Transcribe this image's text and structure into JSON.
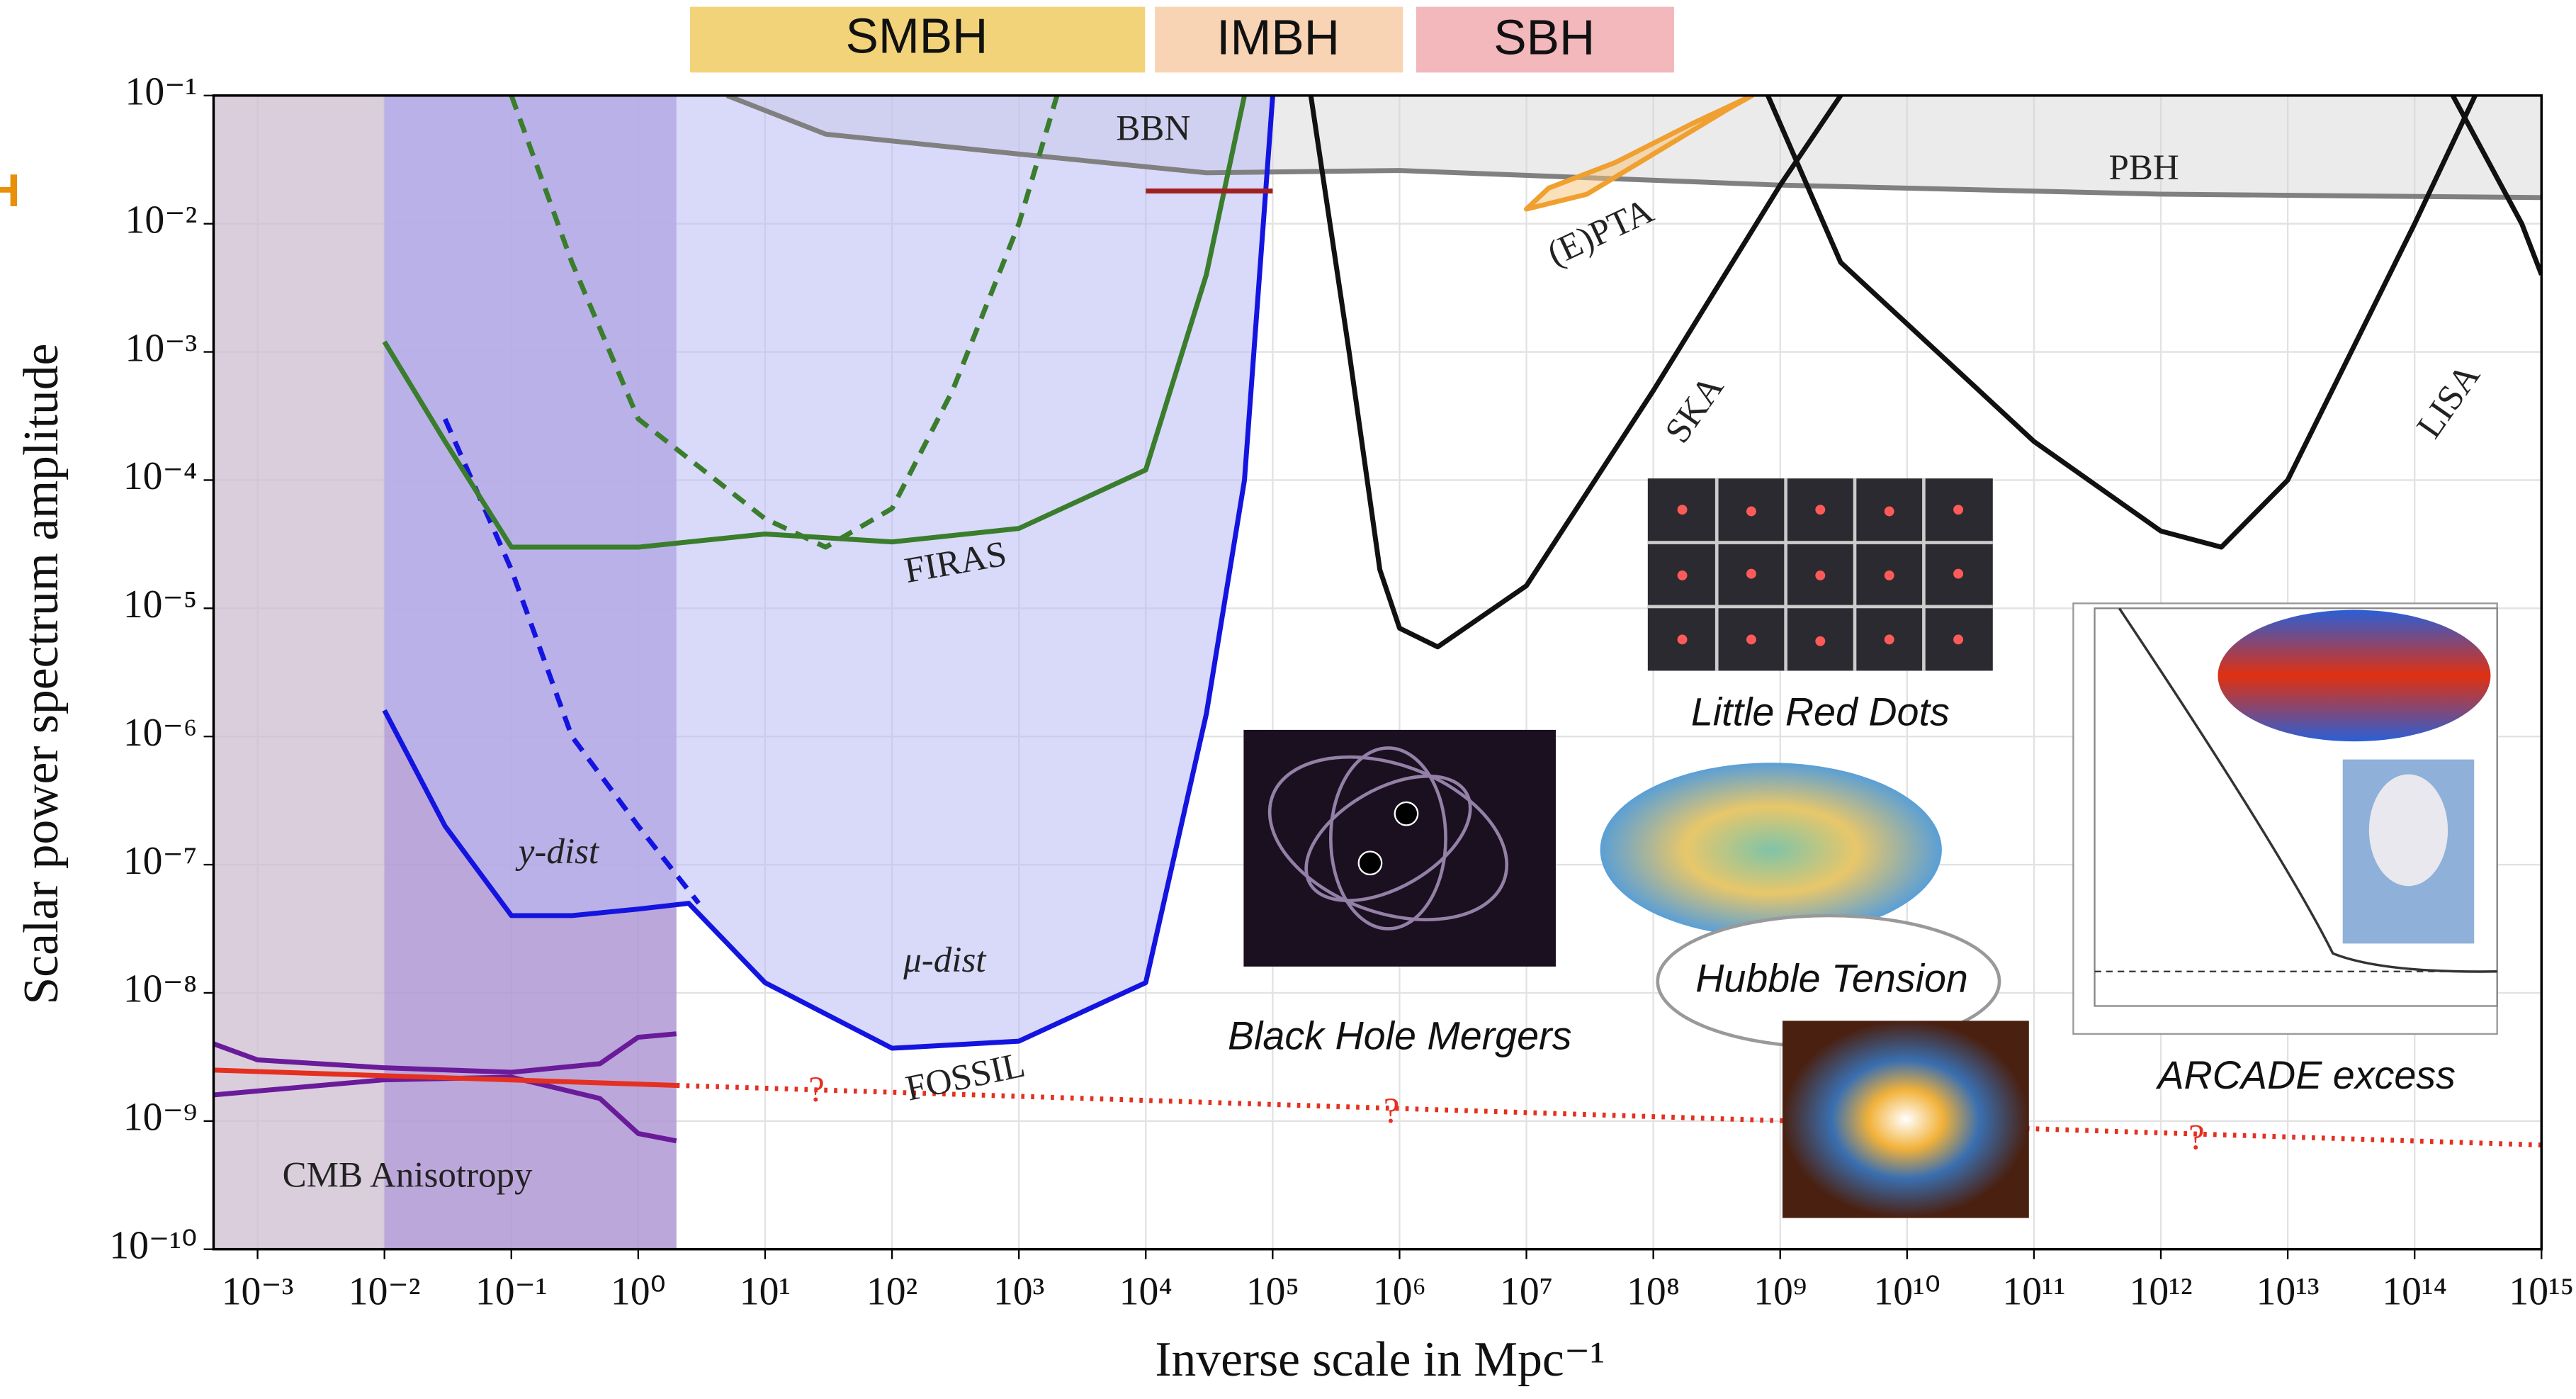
{
  "chart_data": {
    "type": "line",
    "xlabel": "Inverse scale in Mpc⁻¹",
    "ylabel": "Scalar power spectrum amplitude",
    "log_x": true,
    "log_y": true,
    "grid": true,
    "xlim": [
      0.00045,
      1000000000000000.0
    ],
    "ylim": [
      1e-10,
      0.1
    ],
    "xticks": [
      {
        "value": 0.001,
        "label": "10⁻³"
      },
      {
        "value": 0.01,
        "label": "10⁻²"
      },
      {
        "value": 0.1,
        "label": "10⁻¹"
      },
      {
        "value": 1,
        "label": "10⁰"
      },
      {
        "value": 10,
        "label": "10¹"
      },
      {
        "value": 100,
        "label": "10²"
      },
      {
        "value": 1000,
        "label": "10³"
      },
      {
        "value": 10000,
        "label": "10⁴"
      },
      {
        "value": 100000,
        "label": "10⁵"
      },
      {
        "value": 1000000.0,
        "label": "10⁶"
      },
      {
        "value": 10000000.0,
        "label": "10⁷"
      },
      {
        "value": 100000000.0,
        "label": "10⁸"
      },
      {
        "value": 1000000000.0,
        "label": "10⁹"
      },
      {
        "value": 10000000000.0,
        "label": "10¹⁰"
      },
      {
        "value": 100000000000.0,
        "label": "10¹¹"
      },
      {
        "value": 1000000000000.0,
        "label": "10¹²"
      },
      {
        "value": 10000000000000.0,
        "label": "10¹³"
      },
      {
        "value": 100000000000000.0,
        "label": "10¹⁴"
      },
      {
        "value": 1000000000000000.0,
        "label": "10¹⁵"
      }
    ],
    "yticks": [
      {
        "value": 1e-10,
        "label": "10⁻¹⁰"
      },
      {
        "value": 1e-09,
        "label": "10⁻⁹"
      },
      {
        "value": 1e-08,
        "label": "10⁻⁸"
      },
      {
        "value": 1e-07,
        "label": "10⁻⁷"
      },
      {
        "value": 1e-06,
        "label": "10⁻⁶"
      },
      {
        "value": 1e-05,
        "label": "10⁻⁵"
      },
      {
        "value": 0.0001,
        "label": "10⁻⁴"
      },
      {
        "value": 0.001,
        "label": "10⁻³"
      },
      {
        "value": 0.01,
        "label": "10⁻²"
      },
      {
        "value": 0.1,
        "label": "10⁻¹"
      }
    ],
    "regions": [
      {
        "x": [
          0.00045,
          2
        ],
        "color": "rgba(205,190,210,0.75)"
      },
      {
        "x": [
          0.01,
          2
        ],
        "color": "rgba(150,120,215,0.45)"
      }
    ],
    "series": [
      {
        "color": "#808080",
        "dash": "solid",
        "fill_above": "rgba(210,210,210,0.45)",
        "x": [
          5,
          30,
          1000,
          30000,
          1000000.0,
          1000000000.0,
          1000000000000.0,
          1000000000000000.0
        ],
        "values": [
          0.1,
          0.05,
          0.035,
          0.025,
          0.026,
          0.02,
          0.017,
          0.016
        ]
      },
      {
        "color": "#1414e0",
        "dash": "solid",
        "fill_above": "rgba(185,185,245,0.55)",
        "x": [
          0.01,
          0.03,
          0.1,
          0.3,
          1,
          2.5,
          10,
          100,
          1000,
          10000,
          30000,
          60000,
          100000
        ],
        "values": [
          1.6e-06,
          2e-07,
          4e-08,
          4e-08,
          4.5e-08,
          5e-08,
          1.2e-08,
          3.7e-09,
          4.2e-09,
          1.2e-08,
          1.5e-06,
          0.0001,
          0.1
        ]
      },
      {
        "color": "#1414e0",
        "dash": "dashed",
        "x": [
          0.03,
          0.1,
          0.3,
          1,
          3
        ],
        "values": [
          0.0003,
          2e-05,
          1e-06,
          2e-07,
          5e-08
        ]
      },
      {
        "color": "#3a7d2c",
        "dash": "solid",
        "x": [
          0.01,
          0.03,
          0.1,
          1,
          10,
          100,
          1000,
          10000,
          30000,
          60000
        ],
        "values": [
          0.0012,
          0.0002,
          3e-05,
          3e-05,
          3.8e-05,
          3.3e-05,
          4.2e-05,
          0.00012,
          0.004,
          0.1
        ]
      },
      {
        "color": "#3a7d2c",
        "dash": "dashed",
        "x": [
          0.1,
          0.3,
          1,
          10,
          30,
          100,
          300,
          1000,
          2000
        ],
        "values": [
          0.1,
          0.005,
          0.0003,
          5e-05,
          3e-05,
          6e-05,
          0.0005,
          0.01,
          0.1
        ]
      },
      {
        "color": "#a02020",
        "dash": "solid",
        "x": [
          10000,
          100000
        ],
        "values": [
          0.018,
          0.018
        ]
      },
      {
        "color": "#f0a030",
        "dash": "solid",
        "closed": "rgba(245,195,120,0.5)",
        "x": [
          10000000.0,
          30000000.0,
          100000000.0,
          400000000.0,
          600000000.0,
          200000000.0,
          50000000.0,
          15000000.0
        ],
        "values": [
          0.013,
          0.017,
          0.035,
          0.08,
          0.1,
          0.06,
          0.03,
          0.019
        ]
      },
      {
        "color": "#111111",
        "dash": "solid",
        "x": [
          200000,
          400000,
          700000,
          1000000.0,
          2000000.0,
          10000000.0,
          100000000.0,
          1000000000.0,
          3000000000.0
        ],
        "values": [
          0.1,
          0.001,
          2e-05,
          7e-06,
          5e-06,
          1.5e-05,
          0.0005,
          0.02,
          0.1
        ]
      },
      {
        "color": "#111111",
        "dash": "solid",
        "x": [
          800000000.0,
          3000000000.0,
          100000000000.0,
          1000000000000.0,
          3000000000000.0,
          10000000000000.0,
          100000000000000.0,
          300000000000000.0
        ],
        "values": [
          0.1,
          0.005,
          0.0002,
          4e-05,
          3e-05,
          0.0001,
          0.01,
          0.1
        ]
      },
      {
        "color": "#111111",
        "dash": "solid",
        "x": [
          200000000000000.0,
          700000000000000.0,
          1000000000000000.0
        ],
        "values": [
          0.1,
          0.01,
          0.004
        ]
      },
      {
        "color": "#6a1b9a",
        "dash": "solid",
        "x": [
          0.00045,
          0.001,
          0.01,
          0.1,
          0.5,
          1,
          2
        ],
        "values": [
          4e-09,
          3e-09,
          2.6e-09,
          2.4e-09,
          2.8e-09,
          4.5e-09,
          4.8e-09
        ]
      },
      {
        "color": "#6a1b9a",
        "dash": "solid",
        "x": [
          0.00045,
          0.01,
          0.1,
          0.5,
          1,
          2
        ],
        "values": [
          1.6e-09,
          2.1e-09,
          2.2e-09,
          1.5e-09,
          8e-10,
          7e-10
        ]
      },
      {
        "color": "#e53020",
        "dash": "solid",
        "x": [
          0.00045,
          2
        ],
        "values": [
          2.5e-09,
          1.9e-09
        ]
      },
      {
        "color": "#e53020",
        "dash": "dotted",
        "x": [
          2,
          1000000000000000.0
        ],
        "values": [
          1.9e-09,
          6.5e-10
        ]
      }
    ],
    "annotations": [
      "BBN",
      "PBH",
      "(E)PTA",
      "SKA",
      "LISA",
      "FIRAS",
      "y-dist",
      "μ-dist",
      "FOSSIL",
      "CMB Anisotropy",
      "?",
      "?",
      "?"
    ],
    "mass_bands": [
      "SMBH",
      "IMBH",
      "SBH"
    ],
    "image_captions": [
      "Little Red Dots",
      "Black Hole Mergers",
      "Hubble Tension",
      "ARCADE excess"
    ],
    "edge_label": "H"
  }
}
